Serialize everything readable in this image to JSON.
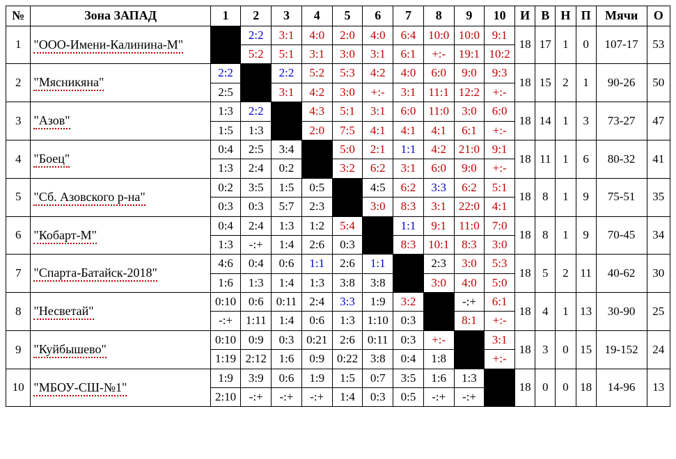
{
  "columns": {
    "num": "№",
    "team": "Зона ЗАПАД",
    "m": [
      "1",
      "2",
      "3",
      "4",
      "5",
      "6",
      "7",
      "8",
      "9",
      "10"
    ],
    "played": "И",
    "win": "В",
    "draw": "Н",
    "loss": "П",
    "goals": "Мячи",
    "points": "О"
  },
  "colors": {
    "win": "#c00000",
    "draw": "#0000cc",
    "loss": "#000000",
    "underline": "#c00000",
    "border": "#000000",
    "bg": "#ffffff",
    "black_cell": "#000000"
  },
  "font": {
    "family": "Times New Roman",
    "header_size": 18,
    "cell_size": 17
  },
  "rows": [
    {
      "n": "1",
      "team": "\"ООО-Имени-Калинина-М\"",
      "top": [
        null,
        "2:2",
        "3:1",
        "4:0",
        "2:0",
        "4:0",
        "6:4",
        "10:0",
        "10:0",
        "9:1"
      ],
      "bot": [
        null,
        "5:2",
        "5:1",
        "3:1",
        "3:0",
        "3:1",
        "6:1",
        "+:-",
        "19:1",
        "10:2"
      ],
      "tcls": [
        null,
        "blue",
        "red",
        "red",
        "red",
        "red",
        "red",
        "red",
        "red",
        "red"
      ],
      "bcls": [
        null,
        "red",
        "red",
        "red",
        "red",
        "red",
        "red",
        "red",
        "red",
        "red"
      ],
      "played": "18",
      "win": "17",
      "draw": "1",
      "loss": "0",
      "goals": "107-17",
      "points": "53"
    },
    {
      "n": "2",
      "team": "\"Мясникяна\"",
      "top": [
        "2:2",
        null,
        "2:2",
        "5:2",
        "5:3",
        "4:2",
        "4:0",
        "6:0",
        "9:0",
        "9:3"
      ],
      "bot": [
        "2:5",
        null,
        "3:1",
        "4:2",
        "3:0",
        "+:-",
        "3:1",
        "11:1",
        "12:2",
        "+:-"
      ],
      "tcls": [
        "blue",
        null,
        "blue",
        "red",
        "red",
        "red",
        "red",
        "red",
        "red",
        "red"
      ],
      "bcls": [
        "blk-txt",
        null,
        "red",
        "red",
        "red",
        "red",
        "red",
        "red",
        "red",
        "red"
      ],
      "played": "18",
      "win": "15",
      "draw": "2",
      "loss": "1",
      "goals": "90-26",
      "points": "50"
    },
    {
      "n": "3",
      "team": "\"Азов\"",
      "top": [
        "1:3",
        "2:2",
        null,
        "4:3",
        "5:1",
        "3:1",
        "6:0",
        "11:0",
        "3:0",
        "6:0"
      ],
      "bot": [
        "1:5",
        "1:3",
        null,
        "2:0",
        "7:5",
        "4:1",
        "4:1",
        "4:1",
        "6:1",
        "+:-"
      ],
      "tcls": [
        "blk-txt",
        "blue",
        null,
        "red",
        "red",
        "red",
        "red",
        "red",
        "red",
        "red"
      ],
      "bcls": [
        "blk-txt",
        "blk-txt",
        null,
        "red",
        "red",
        "red",
        "red",
        "red",
        "red",
        "red"
      ],
      "played": "18",
      "win": "14",
      "draw": "1",
      "loss": "3",
      "goals": "73-27",
      "points": "47"
    },
    {
      "n": "4",
      "team": "\"Боец\"",
      "top": [
        "0:4",
        "2:5",
        "3:4",
        null,
        "5:0",
        "2:1",
        "1:1",
        "4:2",
        "21:0",
        "9:1"
      ],
      "bot": [
        "1:3",
        "2:4",
        "0:2",
        null,
        "3:2",
        "6:2",
        "3:1",
        "6:0",
        "9:0",
        "+:-"
      ],
      "tcls": [
        "blk-txt",
        "blk-txt",
        "blk-txt",
        null,
        "red",
        "red",
        "blue",
        "red",
        "red",
        "red"
      ],
      "bcls": [
        "blk-txt",
        "blk-txt",
        "blk-txt",
        null,
        "red",
        "red",
        "red",
        "red",
        "red",
        "red"
      ],
      "played": "18",
      "win": "11",
      "draw": "1",
      "loss": "6",
      "goals": "80-32",
      "points": "41"
    },
    {
      "n": "5",
      "team": "\"Сб. Азовского р-на\"",
      "top": [
        "0:2",
        "3:5",
        "1:5",
        "0:5",
        null,
        "4:5",
        "6:2",
        "3:3",
        "6:2",
        "5:1"
      ],
      "bot": [
        "0:3",
        "0:3",
        "5:7",
        "2:3",
        null,
        "3:0",
        "8:3",
        "3:1",
        "22:0",
        "4:1"
      ],
      "tcls": [
        "blk-txt",
        "blk-txt",
        "blk-txt",
        "blk-txt",
        null,
        "blk-txt",
        "red",
        "blue",
        "red",
        "red"
      ],
      "bcls": [
        "blk-txt",
        "blk-txt",
        "blk-txt",
        "blk-txt",
        null,
        "red",
        "red",
        "red",
        "red",
        "red"
      ],
      "played": "18",
      "win": "8",
      "draw": "1",
      "loss": "9",
      "goals": "75-51",
      "points": "35"
    },
    {
      "n": "6",
      "team": "\"Кобарт-М\"",
      "top": [
        "0:4",
        "2:4",
        "1:3",
        "1:2",
        "5:4",
        null,
        "1:1",
        "9:1",
        "11:0",
        "7:0"
      ],
      "bot": [
        "1:3",
        "-:+",
        "1:4",
        "2:6",
        "0:3",
        null,
        "8:3",
        "10:1",
        "8:3",
        "3:0"
      ],
      "tcls": [
        "blk-txt",
        "blk-txt",
        "blk-txt",
        "blk-txt",
        "red",
        null,
        "blue",
        "red",
        "red",
        "red"
      ],
      "bcls": [
        "blk-txt",
        "blk-txt",
        "blk-txt",
        "blk-txt",
        "blk-txt",
        null,
        "red",
        "red",
        "red",
        "red"
      ],
      "played": "18",
      "win": "8",
      "draw": "1",
      "loss": "9",
      "goals": "70-45",
      "points": "34"
    },
    {
      "n": "7",
      "team": "\"Спарта-Батайск-2018\"",
      "top": [
        "4:6",
        "0:4",
        "0:6",
        "1:1",
        "2:6",
        "1:1",
        null,
        "2:3",
        "3:0",
        "5:3"
      ],
      "bot": [
        "1:6",
        "1:3",
        "1:4",
        "1:3",
        "3:8",
        "3:8",
        null,
        "3:0",
        "4:0",
        "5:0"
      ],
      "tcls": [
        "blk-txt",
        "blk-txt",
        "blk-txt",
        "blue",
        "blk-txt",
        "blue",
        null,
        "blk-txt",
        "red",
        "red"
      ],
      "bcls": [
        "blk-txt",
        "blk-txt",
        "blk-txt",
        "blk-txt",
        "blk-txt",
        "blk-txt",
        null,
        "red",
        "red",
        "red"
      ],
      "played": "18",
      "win": "5",
      "draw": "2",
      "loss": "11",
      "goals": "40-62",
      "points": "30"
    },
    {
      "n": "8",
      "team": "\"Несветай\"",
      "top": [
        "0:10",
        "0:6",
        "0:11",
        "2:4",
        "3:3",
        "1:9",
        "3:2",
        null,
        "-:+",
        "6:1"
      ],
      "bot": [
        "-:+",
        "1:11",
        "1:4",
        "0:6",
        "1:3",
        "1:10",
        "0:3",
        null,
        "8:1",
        "+:-"
      ],
      "tcls": [
        "blk-txt",
        "blk-txt",
        "blk-txt",
        "blk-txt",
        "blue",
        "blk-txt",
        "red",
        null,
        "blk-txt",
        "red"
      ],
      "bcls": [
        "blk-txt",
        "blk-txt",
        "blk-txt",
        "blk-txt",
        "blk-txt",
        "blk-txt",
        "blk-txt",
        null,
        "red",
        "red"
      ],
      "played": "18",
      "win": "4",
      "draw": "1",
      "loss": "13",
      "goals": "30-90",
      "points": "25"
    },
    {
      "n": "9",
      "team": "\"Куйбышево\"",
      "top": [
        "0:10",
        "0:9",
        "0:3",
        "0:21",
        "2:6",
        "0:11",
        "0:3",
        "+:-",
        null,
        "3:1"
      ],
      "bot": [
        "1:19",
        "2:12",
        "1:6",
        "0:9",
        "0:22",
        "3:8",
        "0:4",
        "1:8",
        null,
        "+:-"
      ],
      "tcls": [
        "blk-txt",
        "blk-txt",
        "blk-txt",
        "blk-txt",
        "blk-txt",
        "blk-txt",
        "blk-txt",
        "red",
        null,
        "red"
      ],
      "bcls": [
        "blk-txt",
        "blk-txt",
        "blk-txt",
        "blk-txt",
        "blk-txt",
        "blk-txt",
        "blk-txt",
        "blk-txt",
        null,
        "red"
      ],
      "played": "18",
      "win": "3",
      "draw": "0",
      "loss": "15",
      "goals": "19-152",
      "points": "24"
    },
    {
      "n": "10",
      "team": "\"МБОУ-СШ-№1\"",
      "top": [
        "1:9",
        "3:9",
        "0:6",
        "1:9",
        "1:5",
        "0:7",
        "3:5",
        "1:6",
        "1:3",
        null
      ],
      "bot": [
        "2:10",
        "-:+",
        "-:+",
        "-:+",
        "1:4",
        "0:3",
        "0:5",
        "-:+",
        "-:+",
        null
      ],
      "tcls": [
        "blk-txt",
        "blk-txt",
        "blk-txt",
        "blk-txt",
        "blk-txt",
        "blk-txt",
        "blk-txt",
        "blk-txt",
        "blk-txt",
        null
      ],
      "bcls": [
        "blk-txt",
        "blk-txt",
        "blk-txt",
        "blk-txt",
        "blk-txt",
        "blk-txt",
        "blk-txt",
        "blk-txt",
        "blk-txt",
        null
      ],
      "played": "18",
      "win": "0",
      "draw": "0",
      "loss": "18",
      "goals": "14-96",
      "points": "13"
    }
  ]
}
